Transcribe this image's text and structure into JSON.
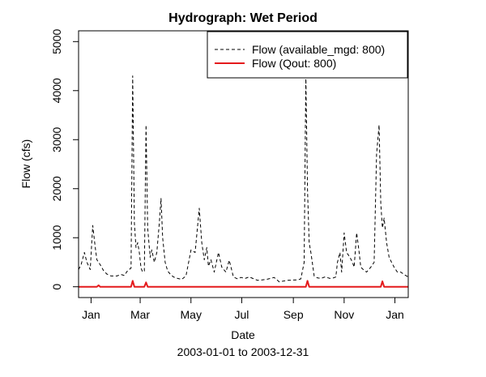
{
  "chart_data": {
    "type": "line",
    "title": "Hydrograph: Wet Period",
    "xlabel": "Date",
    "subtitle": "2003-01-01 to 2003-12-31",
    "ylabel": "Flow (cfs)",
    "xlim": [
      "2002-12-17",
      "2004-01-17"
    ],
    "ylim": [
      -220,
      5220
    ],
    "x_ticks": [
      {
        "date": "2003-01-01",
        "label": "Jan"
      },
      {
        "date": "2003-03-01",
        "label": "Mar"
      },
      {
        "date": "2003-05-01",
        "label": "May"
      },
      {
        "date": "2003-07-01",
        "label": "Jul"
      },
      {
        "date": "2003-09-01",
        "label": "Sep"
      },
      {
        "date": "2003-11-01",
        "label": "Nov"
      },
      {
        "date": "2004-01-01",
        "label": "Jan"
      }
    ],
    "y_ticks": [
      0,
      1000,
      2000,
      3000,
      4000,
      5000
    ],
    "grid": false,
    "legend_position": "top-right",
    "series": [
      {
        "name": "Flow (available_mgd: 800)",
        "color": "#000000",
        "line_style": "dashed",
        "x": [
          "2002-12-17",
          "2002-12-20",
          "2002-12-24",
          "2002-12-27",
          "2002-12-31",
          "2003-01-03",
          "2003-01-06",
          "2003-01-08",
          "2003-01-12",
          "2003-01-16",
          "2003-01-20",
          "2003-01-25",
          "2003-02-01",
          "2003-02-06",
          "2003-02-10",
          "2003-02-14",
          "2003-02-18",
          "2003-02-20",
          "2003-02-22",
          "2003-02-24",
          "2003-02-26",
          "2003-02-28",
          "2003-03-02",
          "2003-03-04",
          "2003-03-06",
          "2003-03-08",
          "2003-03-10",
          "2003-03-13",
          "2003-03-15",
          "2003-03-18",
          "2003-03-21",
          "2003-03-24",
          "2003-03-26",
          "2003-03-28",
          "2003-03-31",
          "2003-04-03",
          "2003-04-06",
          "2003-04-10",
          "2003-04-15",
          "2003-04-20",
          "2003-04-25",
          "2003-05-01",
          "2003-05-06",
          "2003-05-11",
          "2003-05-14",
          "2003-05-17",
          "2003-05-20",
          "2003-05-22",
          "2003-05-25",
          "2003-05-29",
          "2003-06-03",
          "2003-06-07",
          "2003-06-12",
          "2003-06-16",
          "2003-06-21",
          "2003-06-26",
          "2003-06-30",
          "2003-07-05",
          "2003-07-10",
          "2003-07-20",
          "2003-07-31",
          "2003-08-09",
          "2003-08-15",
          "2003-08-25",
          "2003-09-05",
          "2003-09-10",
          "2003-09-14",
          "2003-09-16",
          "2003-09-18",
          "2003-09-20",
          "2003-09-22",
          "2003-09-26",
          "2003-09-30",
          "2003-10-04",
          "2003-10-09",
          "2003-10-15",
          "2003-10-19",
          "2003-10-22",
          "2003-10-24",
          "2003-10-27",
          "2003-10-29",
          "2003-11-01",
          "2003-11-04",
          "2003-11-08",
          "2003-11-11",
          "2003-11-13",
          "2003-11-16",
          "2003-11-19",
          "2003-11-21",
          "2003-11-24",
          "2003-11-28",
          "2003-12-03",
          "2003-12-07",
          "2003-12-10",
          "2003-12-13",
          "2003-12-15",
          "2003-12-17",
          "2003-12-19",
          "2003-12-22",
          "2003-12-25",
          "2003-12-28",
          "2003-12-31",
          "2004-01-04",
          "2004-01-08",
          "2004-01-12",
          "2004-01-17"
        ],
        "y": [
          350,
          450,
          700,
          500,
          350,
          1250,
          800,
          550,
          450,
          330,
          260,
          220,
          220,
          250,
          230,
          330,
          380,
          4300,
          1300,
          800,
          900,
          700,
          380,
          300,
          320,
          3300,
          1200,
          600,
          750,
          500,
          700,
          1300,
          1800,
          1000,
          500,
          320,
          260,
          200,
          170,
          150,
          220,
          750,
          700,
          1600,
          900,
          550,
          800,
          420,
          550,
          300,
          700,
          400,
          300,
          540,
          200,
          160,
          190,
          170,
          200,
          130,
          150,
          190,
          100,
          130,
          140,
          160,
          500,
          4300,
          2000,
          900,
          700,
          220,
          180,
          170,
          200,
          170,
          180,
          200,
          500,
          700,
          300,
          1100,
          700,
          600,
          500,
          400,
          1100,
          700,
          400,
          350,
          300,
          400,
          500,
          2700,
          3300,
          1700,
          1200,
          1400,
          900,
          600,
          500,
          400,
          300,
          300,
          250,
          200
        ]
      },
      {
        "name": "Flow (Qout: 800)",
        "color": "#e41a1c",
        "line_style": "solid",
        "x": [
          "2002-12-17",
          "2003-01-08",
          "2003-01-10",
          "2003-01-12",
          "2003-02-18",
          "2003-02-20",
          "2003-02-22",
          "2003-03-06",
          "2003-03-08",
          "2003-03-10",
          "2003-09-16",
          "2003-09-18",
          "2003-09-20",
          "2003-12-15",
          "2003-12-17",
          "2003-12-19",
          "2004-01-17"
        ],
        "y": [
          0,
          0,
          30,
          0,
          0,
          120,
          0,
          0,
          90,
          0,
          0,
          120,
          0,
          0,
          110,
          0,
          0
        ]
      }
    ]
  }
}
